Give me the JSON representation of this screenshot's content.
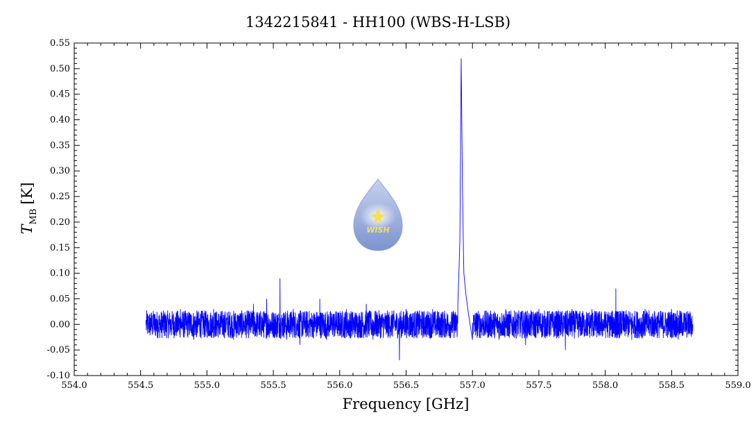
{
  "chart_data": {
    "type": "line",
    "title": "1342215841 - HH100 (WBS-H-LSB)",
    "xlabel": "Frequency [GHz]",
    "ylabel_main": "T",
    "ylabel_sub": "MB",
    "ylabel_unit": "[K]",
    "xlim": [
      554.0,
      559.0
    ],
    "ylim": [
      -0.1,
      0.55
    ],
    "x_ticks": [
      "554.0",
      "554.5",
      "555.0",
      "555.5",
      "556.0",
      "556.5",
      "557.0",
      "557.5",
      "558.0",
      "558.5",
      "559.0"
    ],
    "y_ticks": [
      "-0.10",
      "-0.05",
      "0.00",
      "0.05",
      "0.10",
      "0.15",
      "0.20",
      "0.25",
      "0.30",
      "0.35",
      "0.40",
      "0.45",
      "0.50",
      "0.55"
    ],
    "grid": false,
    "line_color": "#0000ff",
    "series": [
      {
        "points": [
          [
            554.54,
            0.0
          ],
          [
            554.6,
            0.02
          ],
          [
            554.65,
            -0.01
          ],
          [
            554.7,
            0.01
          ],
          [
            554.75,
            -0.02
          ],
          [
            554.8,
            0.03
          ],
          [
            554.85,
            0.0
          ],
          [
            554.9,
            -0.03
          ],
          [
            554.95,
            0.02
          ],
          [
            555.0,
            -0.01
          ],
          [
            555.05,
            0.03
          ],
          [
            555.1,
            -0.02
          ],
          [
            555.15,
            0.01
          ],
          [
            555.2,
            -0.03
          ],
          [
            555.25,
            0.02
          ],
          [
            555.3,
            0.0
          ],
          [
            555.35,
            0.04
          ],
          [
            555.4,
            -0.02
          ],
          [
            555.45,
            0.05
          ],
          [
            555.5,
            0.02
          ],
          [
            555.55,
            0.09
          ],
          [
            555.6,
            -0.03
          ],
          [
            555.65,
            0.03
          ],
          [
            555.7,
            -0.04
          ],
          [
            555.75,
            0.01
          ],
          [
            555.8,
            -0.02
          ],
          [
            555.85,
            0.05
          ],
          [
            555.9,
            -0.03
          ],
          [
            555.95,
            0.02
          ],
          [
            556.0,
            -0.01
          ],
          [
            556.05,
            0.03
          ],
          [
            556.1,
            -0.02
          ],
          [
            556.15,
            0.0
          ],
          [
            556.2,
            0.04
          ],
          [
            556.25,
            -0.03
          ],
          [
            556.3,
            0.01
          ],
          [
            556.35,
            -0.02
          ],
          [
            556.4,
            0.02
          ],
          [
            556.45,
            -0.07
          ],
          [
            556.5,
            0.03
          ],
          [
            556.55,
            -0.02
          ],
          [
            556.6,
            0.02
          ],
          [
            556.65,
            0.0
          ],
          [
            556.7,
            0.03
          ],
          [
            556.75,
            -0.01
          ],
          [
            556.8,
            0.01
          ],
          [
            556.85,
            0.02
          ],
          [
            556.89,
            0.04
          ],
          [
            556.905,
            0.16
          ],
          [
            556.915,
            0.52
          ],
          [
            556.925,
            0.26
          ],
          [
            556.935,
            0.1
          ],
          [
            556.95,
            0.06
          ],
          [
            556.97,
            0.02
          ],
          [
            557.0,
            -0.03
          ],
          [
            557.05,
            0.01
          ],
          [
            557.1,
            -0.02
          ],
          [
            557.15,
            0.02
          ],
          [
            557.2,
            -0.03
          ],
          [
            557.25,
            0.03
          ],
          [
            557.3,
            -0.01
          ],
          [
            557.35,
            0.02
          ],
          [
            557.4,
            -0.04
          ],
          [
            557.45,
            0.01
          ],
          [
            557.5,
            0.03
          ],
          [
            557.55,
            -0.02
          ],
          [
            557.6,
            0.02
          ],
          [
            557.65,
            0.0
          ],
          [
            557.7,
            -0.05
          ],
          [
            557.75,
            0.03
          ],
          [
            557.8,
            -0.02
          ],
          [
            557.85,
            0.01
          ],
          [
            557.9,
            0.03
          ],
          [
            557.95,
            -0.02
          ],
          [
            558.0,
            0.02
          ],
          [
            558.05,
            -0.01
          ],
          [
            558.08,
            0.07
          ],
          [
            558.1,
            -0.02
          ],
          [
            558.15,
            0.02
          ],
          [
            558.2,
            -0.03
          ],
          [
            558.25,
            0.01
          ],
          [
            558.3,
            0.03
          ],
          [
            558.35,
            -0.02
          ],
          [
            558.4,
            0.02
          ],
          [
            558.45,
            -0.01
          ],
          [
            558.5,
            0.03
          ],
          [
            558.55,
            -0.03
          ],
          [
            558.6,
            0.02
          ],
          [
            558.66,
            0.0
          ]
        ]
      }
    ]
  },
  "logo": {
    "text": "WISH",
    "colors": {
      "drop_top": "#a8b8e0",
      "drop_bottom": "#6c86c6",
      "star": "#f7e04a"
    }
  }
}
